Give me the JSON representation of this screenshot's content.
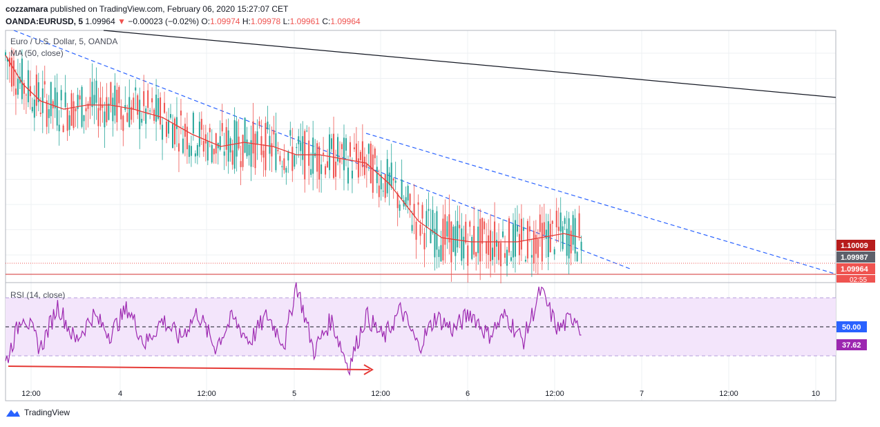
{
  "header": {
    "author": "cozzamara",
    "published_text": "published on TradingView.com, February 06, 2020 15:27:07 CET",
    "symbol": "OANDA:EURUSD, 5",
    "last": "1.09964",
    "change": "−0.00023 (−0.02%)",
    "o_label": "O:",
    "o": "1.09974",
    "h_label": "H:",
    "h": "1.09978",
    "l_label": "L:",
    "l": "1.09961",
    "c_label": "C:",
    "c": "1.09964"
  },
  "brand": {
    "name": "TradingView"
  },
  "chart_data": [
    {
      "type": "line",
      "title": "Euro / U.S. Dollar, 5, OANDA",
      "legend": [
        "MA (50, close)"
      ],
      "x_tick_labels": [
        "12:00",
        "4",
        "12:00",
        "5",
        "12:00",
        "6",
        "12:00",
        "7",
        "12:00",
        "10"
      ],
      "series": [
        {
          "name": "MA (50, close)",
          "color": "#e53935",
          "x": [
            0,
            3,
            6,
            10,
            14,
            18,
            22,
            27,
            32,
            37,
            41,
            46,
            50,
            54,
            58,
            62,
            66,
            71,
            75,
            80,
            84,
            88,
            92,
            96,
            99
          ],
          "values": [
            1.1042,
            1.1035,
            1.1031,
            1.1029,
            1.103,
            1.103,
            1.1029,
            1.1027,
            1.1023,
            1.102,
            1.1021,
            1.102,
            1.1018,
            1.1018,
            1.1017,
            1.1016,
            1.1011,
            1.1002,
            1.0998,
            1.0997,
            1.0997,
            1.0997,
            1.0998,
            1.0999,
            1.0998
          ]
        }
      ],
      "price_labels": [
        {
          "value": "1.10009",
          "color": "#b71c1c"
        },
        {
          "value": "1.09987",
          "color": "#5d606b"
        },
        {
          "value": "1.09964",
          "color": "#ef5350"
        },
        {
          "value": "02:55",
          "color": "#ef5350"
        }
      ],
      "trend_lines": [
        {
          "style": "solid",
          "color": "#131722"
        },
        {
          "style": "dashed",
          "color": "#2962ff"
        },
        {
          "style": "dashed",
          "color": "#2962ff"
        }
      ],
      "grid": true
    },
    {
      "type": "line",
      "title": "RSI (14, close)",
      "legend": [
        "RSI (14, close)"
      ],
      "levels": [
        70,
        50,
        30
      ],
      "ylim": [
        0,
        100
      ],
      "series": [
        {
          "name": "RSI (14, close)",
          "color": "#9c27b0",
          "x": [
            0,
            3,
            6,
            9,
            12,
            15,
            18,
            21,
            24,
            27,
            30,
            33,
            36,
            39,
            42,
            45,
            48,
            50,
            53,
            56,
            59,
            62,
            65,
            68,
            71,
            74,
            77,
            80,
            83,
            86,
            89,
            92,
            95,
            98,
            99
          ],
          "values": [
            25,
            60,
            35,
            65,
            40,
            58,
            45,
            63,
            38,
            55,
            42,
            60,
            36,
            56,
            40,
            58,
            38,
            80,
            33,
            55,
            22,
            58,
            42,
            62,
            36,
            57,
            48,
            60,
            44,
            58,
            40,
            75,
            48,
            58,
            48
          ]
        }
      ],
      "value_labels": [
        {
          "value": "50.00",
          "color": "#2962ff"
        },
        {
          "value": "37.62",
          "color": "#9c27b0"
        }
      ],
      "annotation": "arrow",
      "grid": true
    }
  ]
}
